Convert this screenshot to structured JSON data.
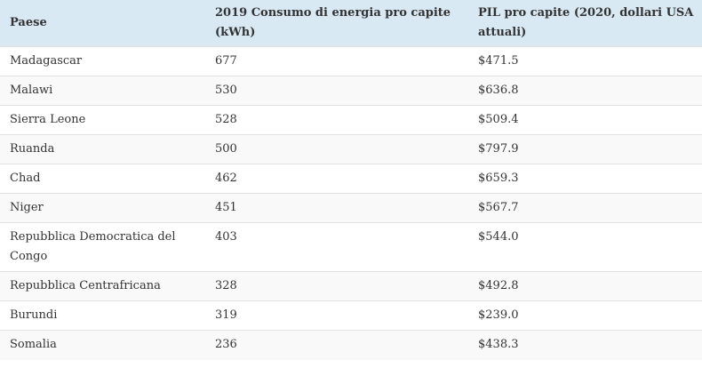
{
  "table": {
    "headers": [
      "Paese",
      "2019 Consumo di energia pro capite (kWh)",
      "PIL pro capite (2020, dollari USA attuali)"
    ],
    "rows": [
      [
        "Madagascar",
        "677",
        "$471.5"
      ],
      [
        "Malawi",
        "530",
        "$636.8"
      ],
      [
        "Sierra Leone",
        "528",
        "$509.4"
      ],
      [
        "Ruanda",
        "500",
        "$797.9"
      ],
      [
        "Chad",
        "462",
        "$659.3"
      ],
      [
        "Niger",
        "451",
        "$567.7"
      ],
      [
        "Repubblica Democratica del Congo",
        "403",
        "$544.0"
      ],
      [
        "Repubblica Centrafricana",
        "328",
        "$492.8"
      ],
      [
        "Burundi",
        "319",
        "$239.0"
      ],
      [
        "Somalia",
        "236",
        "$438.3"
      ]
    ]
  }
}
